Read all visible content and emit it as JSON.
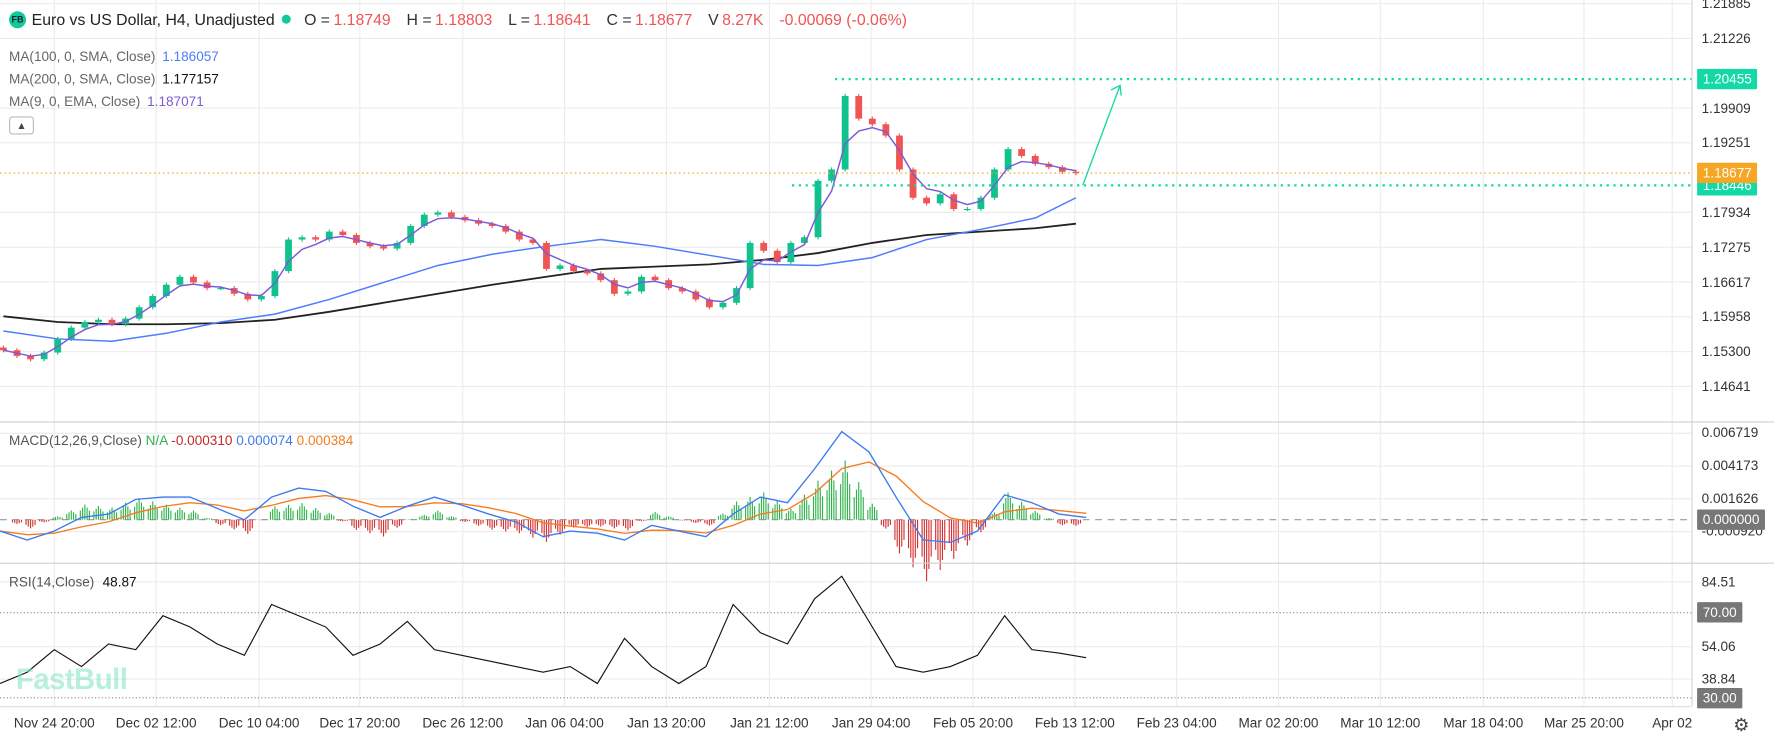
{
  "header": {
    "logo": "FB",
    "title": "Euro vs US Dollar, H4, Unadjusted",
    "o_label": "O =",
    "o": "1.18749",
    "h_label": "H =",
    "h": "1.18803",
    "l_label": "L =",
    "l": "1.18641",
    "c_label": "C =",
    "c": "1.18677",
    "v_label": "V",
    "v": "8.27K",
    "change": "-0.00069 (-0.06%)",
    "status_color": "#13c99a"
  },
  "indicators": {
    "ma100": {
      "label": "MA(100, 0, SMA, Close)",
      "value": "1.186057",
      "color": "#4d7cfe"
    },
    "ma200": {
      "label": "MA(200, 0, SMA, Close)",
      "value": "1.177157",
      "color": "#222222"
    },
    "ema9": {
      "label": "MA(9, 0, EMA, Close)",
      "value": "1.187071",
      "color": "#7b5cd6"
    },
    "collapse_icon": "chevron-up-icon",
    "macd": {
      "label": "MACD(12,26,9,Close)",
      "hist": "N/A",
      "macd": "-0.000310",
      "signal": "0.000074",
      "extra": "0.000384"
    },
    "rsi": {
      "label": "RSI(14,Close)",
      "value": "48.87"
    }
  },
  "watermark": "FastBull",
  "settings_icon": "gear-icon",
  "chart_data": [
    {
      "type": "candlestick",
      "pane": "price",
      "y_ticks": [
        "1.21885",
        "1.21226",
        "1.19909",
        "1.19251",
        "1.17934",
        "1.17275",
        "1.16617",
        "1.15958",
        "1.15300",
        "1.14641"
      ],
      "x_ticks": [
        "Nov 24 20:00",
        "Dec 02 12:00",
        "Dec 10 04:00",
        "Dec 17 20:00",
        "Dec 26 12:00",
        "Jan 06 04:00",
        "Jan 13 20:00",
        "Jan 21 12:00",
        "Jan 29 04:00",
        "Feb 05 20:00",
        "Feb 13 12:00",
        "Feb 23 04:00",
        "Mar 02 20:00",
        "Mar 10 12:00",
        "Mar 18 04:00",
        "Mar 25 20:00",
        "Apr 02"
      ],
      "close": [
        1.15325,
        1.15218,
        1.15154,
        1.15282,
        1.15539,
        1.15753,
        1.1586,
        1.15902,
        1.15817,
        1.15924,
        1.16138,
        1.16351,
        1.16565,
        1.16715,
        1.16608,
        1.16501,
        1.16501,
        1.16394,
        1.16287,
        1.16351,
        1.16822,
        1.1742,
        1.17463,
        1.1742,
        1.1757,
        1.17506,
        1.17356,
        1.17292,
        1.17249,
        1.17356,
        1.17677,
        1.17891,
        1.17933,
        1.17848,
        1.17784,
        1.1772,
        1.17677,
        1.1757,
        1.1742,
        1.17356,
        1.16864,
        1.16929,
        1.16822,
        1.16779,
        1.16651,
        1.16394,
        1.16437,
        1.16715,
        1.16651,
        1.16501,
        1.16437,
        1.16287,
        1.16138,
        1.16223,
        1.16501,
        1.17356,
        1.17207,
        1.16993,
        1.17356,
        1.17463,
        1.18532,
        1.18746,
        1.20136,
        1.19708,
        1.19601,
        1.19387,
        1.18746,
        1.18211,
        1.18105,
        1.18276,
        1.17998,
        1.17998,
        1.18211,
        1.18746,
        1.19131,
        1.19002,
        1.18853,
        1.18789,
        1.18703,
        1.18677
      ],
      "ma100_points": [
        1.15689,
        1.15539,
        1.15496,
        1.15646,
        1.1586,
        1.16009,
        1.16287,
        1.16608,
        1.16929,
        1.17142,
        1.17292,
        1.1742,
        1.17292,
        1.17121,
        1.1695,
        1.16929,
        1.17078,
        1.1742,
        1.17613,
        1.17827,
        1.18211
      ],
      "ma200_points": [
        1.15967,
        1.1586,
        1.15817,
        1.15817,
        1.15838,
        1.15902,
        1.16052,
        1.16223,
        1.16394,
        1.16565,
        1.16715,
        1.16864,
        1.16907,
        1.1695,
        1.17036,
        1.17164,
        1.17356,
        1.17506,
        1.1757,
        1.17634,
        1.1772
      ],
      "last_price": {
        "value": "1.18677",
        "color": "#f5a623"
      },
      "drawings": [
        {
          "type": "horizontal-dotted",
          "value": "1.20455",
          "color": "#13d9a6"
        },
        {
          "type": "horizontal-dotted",
          "value": "1.18446",
          "color": "#13d9a6"
        },
        {
          "type": "arrow",
          "from": 1.18446,
          "to": 1.20336,
          "color": "#13d9a6"
        }
      ],
      "colors": {
        "up": "#12c28e",
        "down": "#f05454"
      },
      "grid": true
    },
    {
      "type": "line",
      "pane": "macd",
      "y_ticks": [
        "0.006719",
        "0.004173",
        "0.001626",
        "-0.000920"
      ],
      "zero_label": "0.000000",
      "macd": [
        -0.00088,
        -0.00158,
        -0.00088,
        0.00018,
        0.00044,
        0.00158,
        0.00176,
        0.00176,
        0.00088,
        0,
        0.00176,
        0.00246,
        0.0022,
        0.00105,
        0.00018,
        0.00105,
        0.00176,
        0.00114,
        0.00044,
        -0.00018,
        -0.00132,
        -0.00088,
        -0.00105,
        -0.00158,
        -0.00044,
        -0.00088,
        -0.00132,
        0.00044,
        0.00176,
        0.00132,
        0.00395,
        0.00685,
        0.00527,
        0.00176,
        -0.00158,
        -0.00176,
        -0.00088,
        0.00193,
        0.00132,
        0.00044,
        0.00018
      ],
      "colors": {
        "macd": "#3d7bf0",
        "signal": "#f57c1f",
        "hist_up": "#2fb34a",
        "hist_down": "#d63030"
      }
    },
    {
      "type": "line",
      "pane": "rsi",
      "y_ticks": [
        "84.51",
        "54.06",
        "38.84"
      ],
      "levels": [
        "70.00",
        "30.00"
      ],
      "values": [
        36.72,
        42.03,
        52.65,
        44.69,
        55.31,
        52.65,
        68.58,
        63.27,
        55.31,
        49.99,
        73.89,
        68.58,
        63.27,
        49.99,
        55.31,
        65.93,
        52.65,
        49.99,
        47.34,
        44.69,
        42.03,
        44.69,
        36.72,
        57.96,
        44.69,
        36.72,
        44.69,
        73.89,
        60.62,
        55.31,
        76.54,
        87.17,
        65.93,
        44.69,
        42.03,
        44.69,
        49.99,
        68.58,
        52.65,
        51.06,
        48.87
      ],
      "color": "#111111"
    }
  ]
}
